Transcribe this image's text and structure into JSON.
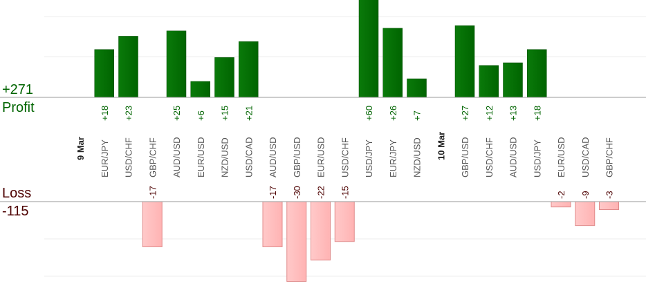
{
  "summary": {
    "profit_total": "+271",
    "profit_label": "Profit",
    "loss_label": "Loss",
    "loss_total": "-115"
  },
  "colors": {
    "profit_bar": "#006400",
    "loss_bar": "#ffb3b3",
    "profit_text": "#006400",
    "loss_text": "#4d0000",
    "category_text": "#555555",
    "date_text": "#222222"
  },
  "chart_data": {
    "type": "bar",
    "grid": true,
    "categories": [
      "9 Mar",
      "EUR/JPY",
      "USD/CHF",
      "GBP/CHF",
      "AUD/USD",
      "EUR/USD",
      "NZD/USD",
      "USD/CAD",
      "AUD/USD",
      "GBP/USD",
      "EUR/USD",
      "USD/CHF",
      "USD/JPY",
      "EUR/JPY",
      "NZD/USD",
      "10 Mar",
      "GBP/USD",
      "USD/CHF",
      "AUD/USD",
      "USD/JPY",
      "EUR/USD",
      "USD/CAD",
      "GBP/CHF"
    ],
    "date_separators": [
      "9 Mar",
      "10 Mar"
    ],
    "values": [
      null,
      18,
      23,
      -17,
      25,
      6,
      15,
      21,
      -17,
      -30,
      -22,
      -15,
      60,
      26,
      7,
      null,
      27,
      12,
      13,
      18,
      -2,
      -9,
      -3
    ],
    "value_labels": [
      "",
      "+18",
      "+23",
      "-17",
      "+25",
      "+6",
      "+15",
      "+21",
      "-17",
      "-30",
      "-22",
      "-15",
      "+60",
      "+26",
      "+7",
      "",
      "+27",
      "+12",
      "+13",
      "+18",
      "-2",
      "-9",
      "-3"
    ]
  }
}
